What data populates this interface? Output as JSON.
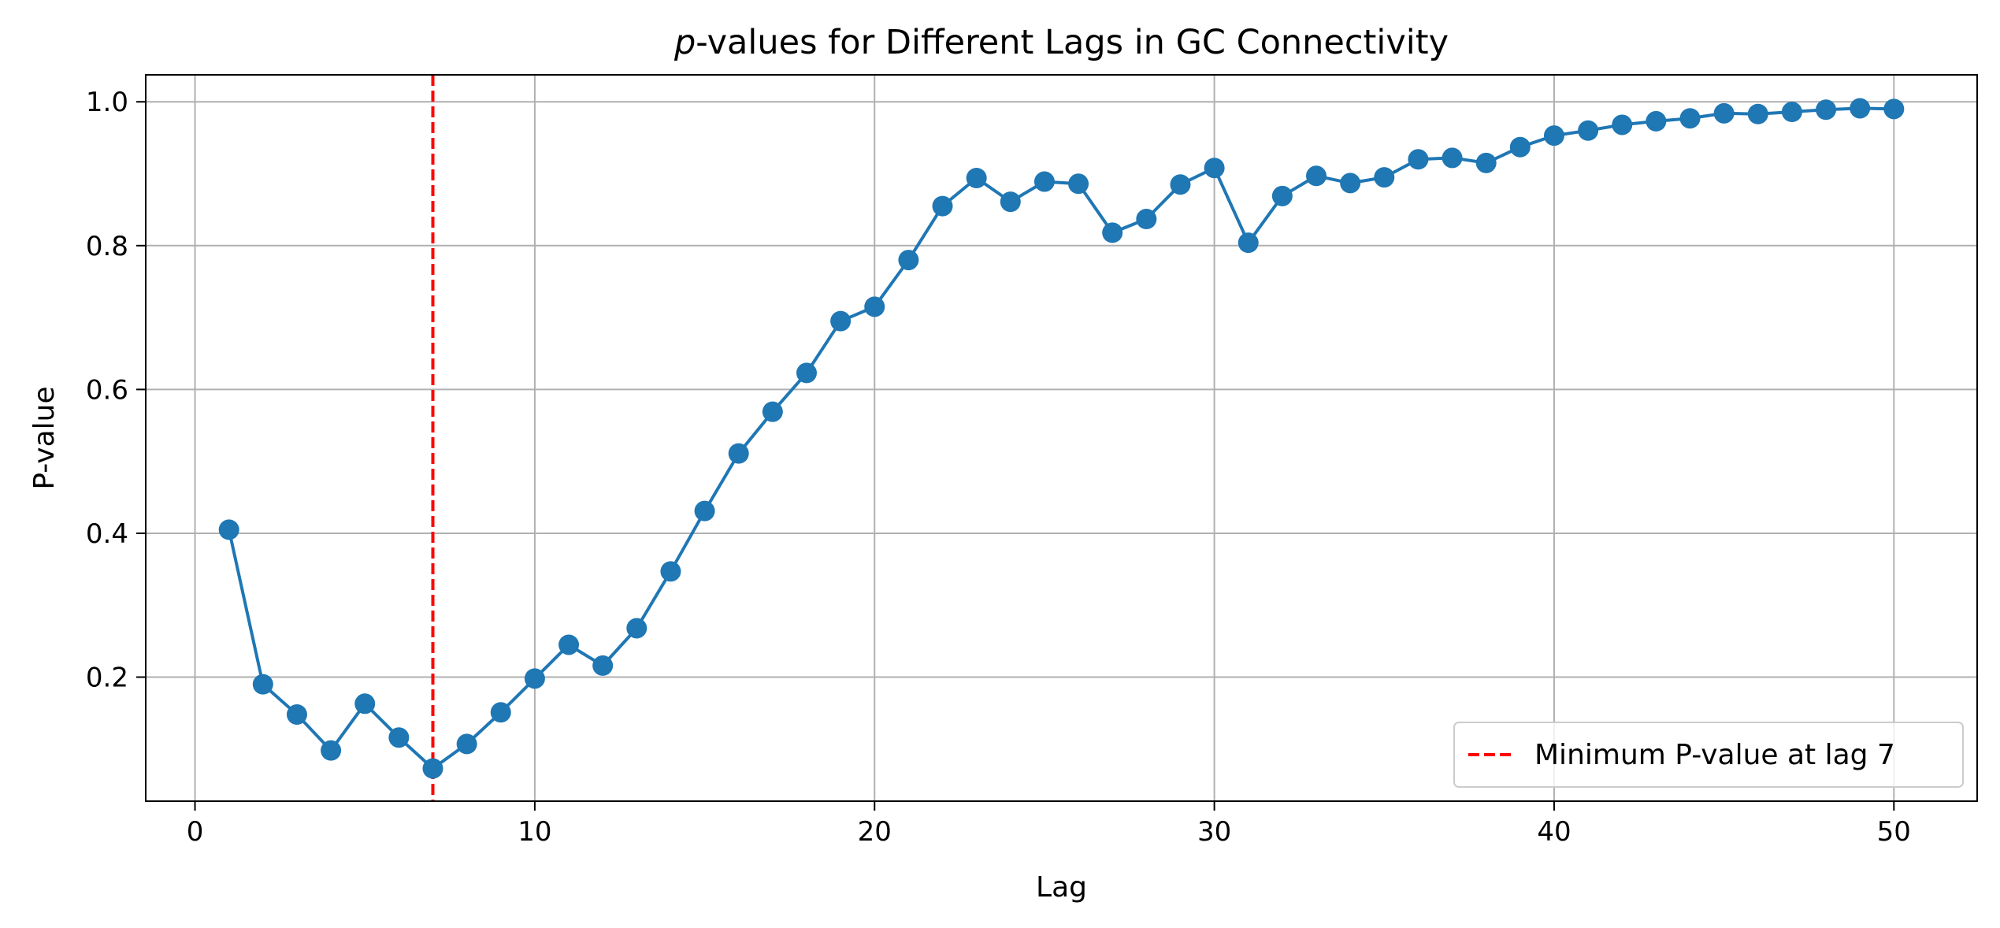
{
  "chart_data": {
    "type": "line",
    "title_italic": "p",
    "title_rest": "-values for Different Lags in GC Connectivity",
    "xlabel": "Lag",
    "ylabel": "P-value",
    "xlim": [
      -1.45,
      52.45
    ],
    "ylim": [
      0.0275,
      1.0375
    ],
    "xticks": [
      0,
      10,
      20,
      30,
      40,
      50
    ],
    "xtick_labels": [
      "0",
      "10",
      "20",
      "30",
      "40",
      "50"
    ],
    "yticks": [
      0.2,
      0.4,
      0.6,
      0.8,
      1.0
    ],
    "ytick_labels": [
      "0.2",
      "0.4",
      "0.6",
      "0.8",
      "1.0"
    ],
    "grid": true,
    "series": [
      {
        "color": "#1f77b4",
        "marker": "circle",
        "x": [
          1,
          2,
          3,
          4,
          5,
          6,
          7,
          8,
          9,
          10,
          11,
          12,
          13,
          14,
          15,
          16,
          17,
          18,
          19,
          20,
          21,
          22,
          23,
          24,
          25,
          26,
          27,
          28,
          29,
          30,
          31,
          32,
          33,
          34,
          35,
          36,
          37,
          38,
          39,
          40,
          41,
          42,
          43,
          44,
          45,
          46,
          47,
          48,
          49,
          50
        ],
        "values": [
          0.405,
          0.19,
          0.148,
          0.098,
          0.163,
          0.116,
          0.073,
          0.107,
          0.151,
          0.198,
          0.245,
          0.216,
          0.268,
          0.347,
          0.431,
          0.511,
          0.569,
          0.623,
          0.695,
          0.715,
          0.78,
          0.855,
          0.894,
          0.861,
          0.889,
          0.886,
          0.818,
          0.837,
          0.885,
          0.908,
          0.804,
          0.869,
          0.897,
          0.887,
          0.895,
          0.92,
          0.922,
          0.915,
          0.937,
          0.953,
          0.96,
          0.968,
          0.973,
          0.977,
          0.984,
          0.983,
          0.986,
          0.989,
          0.991,
          0.99
        ]
      }
    ],
    "vline": {
      "x": 7,
      "color": "#ff0000",
      "style": "dashed",
      "label": "Minimum P-value at lag 7"
    },
    "legend_placement": "lower-right"
  }
}
